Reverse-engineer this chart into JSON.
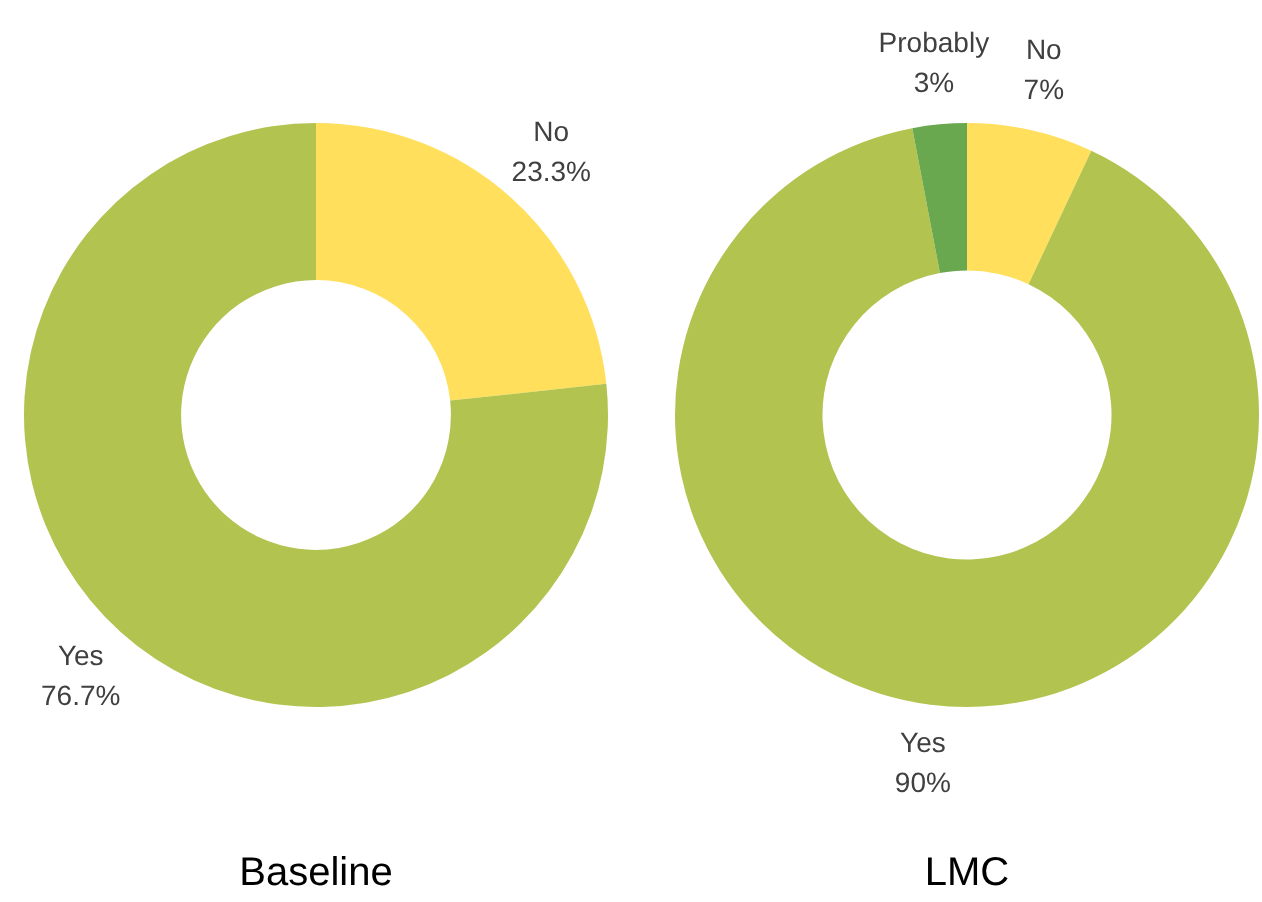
{
  "chart_data": [
    {
      "type": "donut",
      "title": "Baseline",
      "categories": [
        "No",
        "Yes"
      ],
      "values": [
        23.3,
        76.7
      ],
      "colors": [
        "#ffdf5b",
        "#b3c34f"
      ],
      "value_labels": [
        "23.3%",
        "76.7%"
      ]
    },
    {
      "type": "donut",
      "title": "LMC",
      "categories": [
        "No",
        "Yes",
        "Probably"
      ],
      "values": [
        7,
        90,
        3
      ],
      "colors": [
        "#ffdf5b",
        "#b3c34f",
        "#6aa84f"
      ],
      "value_labels": [
        "7%",
        "90%",
        "3%"
      ]
    }
  ]
}
